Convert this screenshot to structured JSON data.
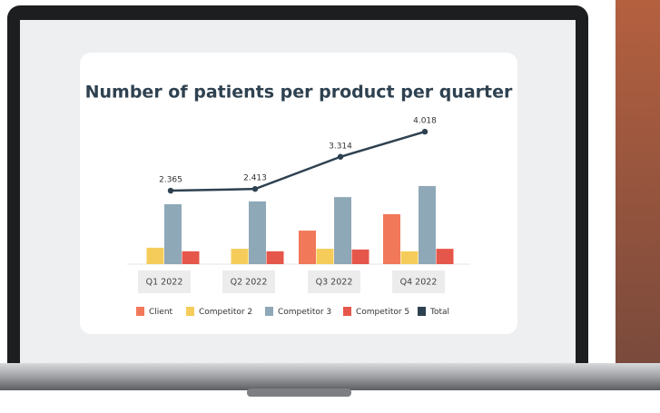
{
  "chart_data": {
    "type": "bar",
    "title": "Number of patients per product per quarter",
    "categories": [
      "Q1 2022",
      "Q2 2022",
      "Q3 2022",
      "Q4 2022"
    ],
    "series": [
      {
        "name": "Client",
        "color": "#f2785a",
        "values": [
          null,
          null,
          940,
          1400
        ]
      },
      {
        "name": "Competitor 2",
        "color": "#f5cc5a",
        "values": [
          460,
          430,
          430,
          360
        ]
      },
      {
        "name": "Competitor 3",
        "color": "#8fa8b8",
        "values": [
          1680,
          1760,
          1880,
          2190
        ]
      },
      {
        "name": "Competitor 5",
        "color": "#e5574a",
        "values": [
          360,
          360,
          410,
          430
        ]
      },
      {
        "name": "Total",
        "color": "#2e4150",
        "type": "line",
        "values": [
          2365,
          2413,
          3314,
          4018
        ],
        "value_labels": [
          "2.365",
          "2.413",
          "3.314",
          "4.018"
        ]
      }
    ]
  }
}
